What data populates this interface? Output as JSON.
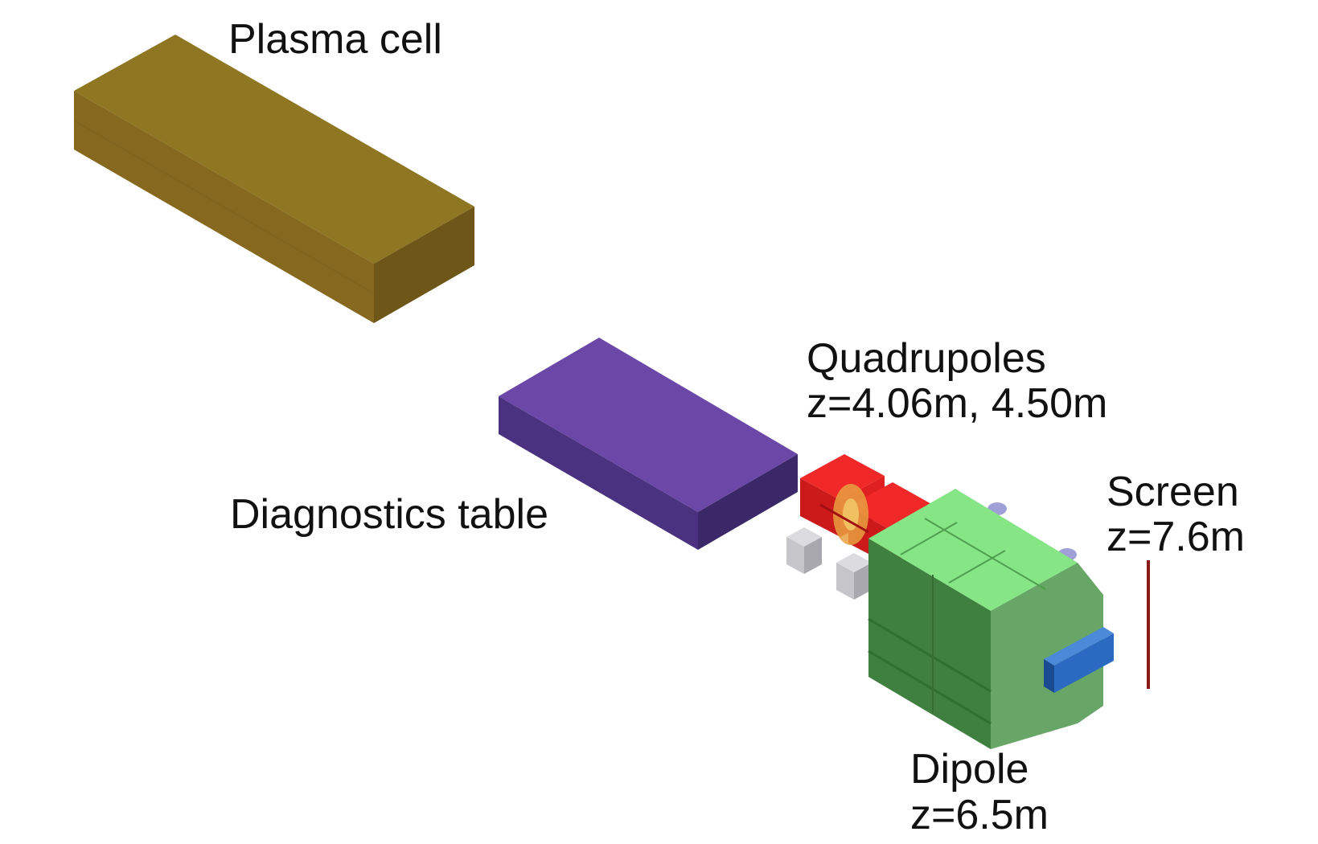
{
  "labels": {
    "plasma_cell": "Plasma cell",
    "diagnostics_table": "Diagnostics table",
    "quadrupoles": "Quadrupoles",
    "quadrupoles_z": "z=4.06m, 4.50m",
    "screen": "Screen",
    "screen_z": "z=7.6m",
    "dipole": "Dipole",
    "dipole_z": "z=6.5m"
  },
  "colors": {
    "plasma_cell": "#8a7020",
    "diagnostics_table": "#6a48a6",
    "quadrupoles": "#e01a1a",
    "dipole": "#7ee07e",
    "screen": "#8a1a1a",
    "support_blocks": "#c8c8cc",
    "blue_part": "#2a6ac0"
  }
}
